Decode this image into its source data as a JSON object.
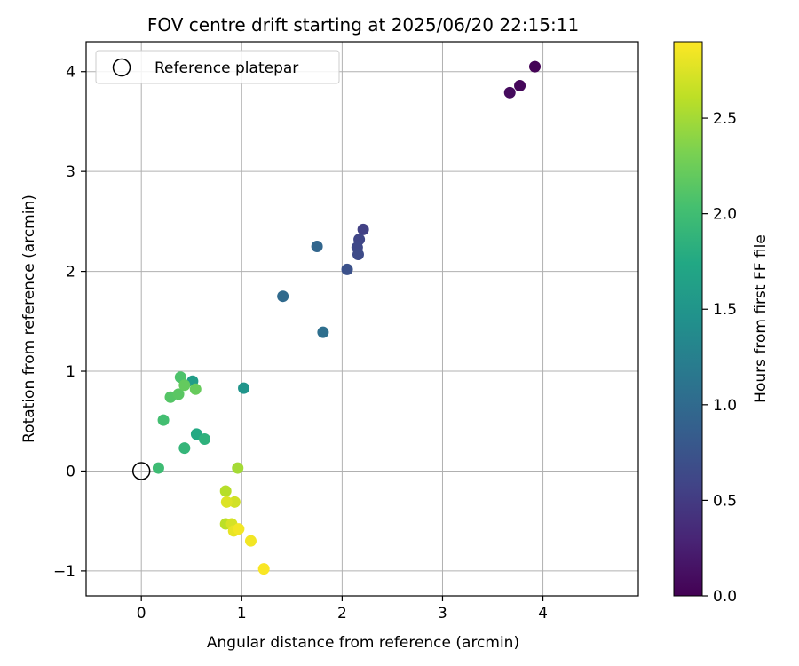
{
  "chart_data": {
    "type": "scatter",
    "title": "FOV centre drift starting at 2025/06/20 22:15:11",
    "xlabel": "Angular distance from reference (arcmin)",
    "ylabel": "Rotation from reference (arcmin)",
    "xlim": [
      -0.55,
      4.95
    ],
    "ylim": [
      -1.25,
      4.3
    ],
    "xticks": [
      0,
      1,
      2,
      3,
      4
    ],
    "yticks": [
      -1,
      0,
      1,
      2,
      3,
      4
    ],
    "grid": true,
    "colorbar": {
      "label": "Hours from first FF file",
      "range": [
        0,
        2.9
      ],
      "ticks": [
        0.0,
        0.5,
        1.0,
        1.5,
        2.0,
        2.5
      ],
      "tick_labels": [
        "0.0",
        "0.5",
        "1.0",
        "1.5",
        "2.0",
        "2.5"
      ],
      "colormap": "viridis"
    },
    "reference": {
      "label": "Reference platepar",
      "x": 0,
      "y": 0
    },
    "legend_position": "top-left",
    "points": [
      {
        "x": 3.92,
        "y": 4.05,
        "c": 0.02
      },
      {
        "x": 3.77,
        "y": 3.86,
        "c": 0.05
      },
      {
        "x": 3.67,
        "y": 3.79,
        "c": 0.08
      },
      {
        "x": 2.21,
        "y": 2.42,
        "c": 0.55
      },
      {
        "x": 2.17,
        "y": 2.32,
        "c": 0.6
      },
      {
        "x": 2.15,
        "y": 2.24,
        "c": 0.62
      },
      {
        "x": 2.16,
        "y": 2.17,
        "c": 0.65
      },
      {
        "x": 2.05,
        "y": 2.02,
        "c": 0.72
      },
      {
        "x": 1.75,
        "y": 2.25,
        "c": 0.95
      },
      {
        "x": 1.41,
        "y": 1.75,
        "c": 1.0
      },
      {
        "x": 1.81,
        "y": 1.39,
        "c": 1.05
      },
      {
        "x": 1.02,
        "y": 0.83,
        "c": 1.5
      },
      {
        "x": 0.51,
        "y": 0.9,
        "c": 1.6
      },
      {
        "x": 0.55,
        "y": 0.37,
        "c": 1.75
      },
      {
        "x": 0.63,
        "y": 0.32,
        "c": 1.85
      },
      {
        "x": 0.43,
        "y": 0.23,
        "c": 1.9
      },
      {
        "x": 0.17,
        "y": 0.03,
        "c": 1.98
      },
      {
        "x": 0.22,
        "y": 0.51,
        "c": 2.02
      },
      {
        "x": 0.39,
        "y": 0.94,
        "c": 2.08
      },
      {
        "x": 0.29,
        "y": 0.74,
        "c": 2.12
      },
      {
        "x": 0.37,
        "y": 0.77,
        "c": 2.15
      },
      {
        "x": 0.43,
        "y": 0.86,
        "c": 2.2
      },
      {
        "x": 0.54,
        "y": 0.82,
        "c": 2.22
      },
      {
        "x": 0.96,
        "y": 0.03,
        "c": 2.5
      },
      {
        "x": 0.84,
        "y": -0.2,
        "c": 2.58
      },
      {
        "x": 0.93,
        "y": -0.31,
        "c": 2.7
      },
      {
        "x": 0.85,
        "y": -0.31,
        "c": 2.75
      },
      {
        "x": 0.84,
        "y": -0.53,
        "c": 2.6
      },
      {
        "x": 0.9,
        "y": -0.53,
        "c": 2.72
      },
      {
        "x": 0.92,
        "y": -0.6,
        "c": 2.8
      },
      {
        "x": 0.97,
        "y": -0.58,
        "c": 2.85
      },
      {
        "x": 1.09,
        "y": -0.7,
        "c": 2.85
      },
      {
        "x": 1.22,
        "y": -0.98,
        "c": 2.88
      }
    ]
  }
}
